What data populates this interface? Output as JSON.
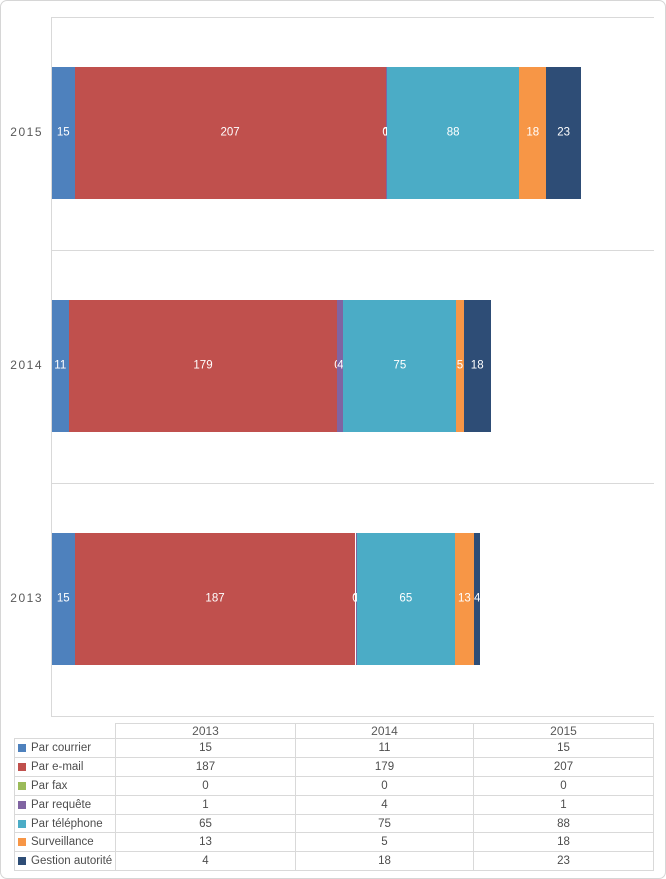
{
  "chart_data": {
    "type": "bar",
    "orientation": "horizontal",
    "stacked": true,
    "title": "",
    "years": [
      "2013",
      "2014",
      "2015"
    ],
    "display_order_top_to_bottom": [
      "2015",
      "2014",
      "2013"
    ],
    "x_axis": {
      "min": 0,
      "max": 400,
      "tick_labels_visible": false,
      "gridlines": true
    },
    "series": [
      {
        "name": "Par courrier",
        "color": "#4E81BD",
        "values": [
          15,
          11,
          15
        ]
      },
      {
        "name": "Par e-mail",
        "color": "#C0504D",
        "values": [
          187,
          179,
          207
        ]
      },
      {
        "name": "Par fax",
        "color": "#9BBB59",
        "values": [
          0,
          0,
          0
        ]
      },
      {
        "name": "Par requête",
        "color": "#8064A2",
        "values": [
          1,
          4,
          1
        ]
      },
      {
        "name": "Par téléphone",
        "color": "#4BACC6",
        "values": [
          65,
          75,
          88
        ]
      },
      {
        "name": "Surveillance",
        "color": "#F79646",
        "values": [
          13,
          5,
          18
        ]
      },
      {
        "name": "Gestion autorité",
        "color": "#2E4D76",
        "values": [
          4,
          18,
          23
        ]
      }
    ],
    "data_labels": {
      "color": "#FFFFFF",
      "show_zero_labels": true
    },
    "data_table": {
      "shown": true,
      "show_legend_keys": true,
      "column_headers": [
        "2013",
        "2014",
        "2015"
      ]
    }
  },
  "styles": {
    "gridline_color": "#D9D9D9",
    "axis_text_color": "#595959",
    "table_text_color": "#4D4D4D",
    "background_color": "#FFFFFF"
  }
}
